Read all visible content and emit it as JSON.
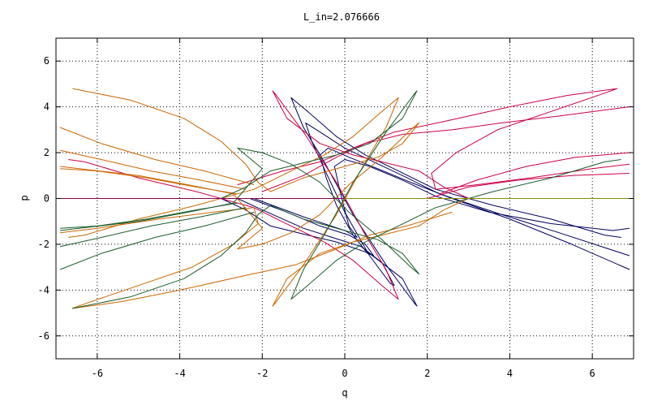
{
  "chart_data": {
    "type": "line",
    "title": "L_in=2.076666",
    "xlabel": "q",
    "ylabel": "p",
    "xlim": [
      -7,
      7
    ],
    "ylim": [
      -7,
      7
    ],
    "x_ticks": [
      -6,
      -4,
      -2,
      0,
      2,
      4,
      6
    ],
    "y_ticks": [
      -6,
      -4,
      -2,
      0,
      2,
      4,
      6
    ],
    "grid": true,
    "legend": "none",
    "series_colors": [
      "#000060",
      "#cc0044",
      "#cc6600",
      "#1a5c2a",
      "#8b8b00",
      "#880055"
    ],
    "series": [
      {
        "color": "#000060",
        "values": [
          [
            -3,
            0
          ],
          [
            -2.4,
            -0.5
          ],
          [
            -1.8,
            -1.2
          ],
          [
            -0.9,
            -1.6
          ],
          [
            -0.2,
            -1.9
          ],
          [
            0.6,
            -2.4
          ],
          [
            1.4,
            -3.5
          ],
          [
            1.75,
            -4.7
          ],
          [
            1.7,
            -4.6
          ],
          [
            1.0,
            -2.9
          ],
          [
            0.2,
            -0.7
          ],
          [
            -0.5,
            1.6
          ],
          [
            -1.0,
            3.1
          ],
          [
            -1.3,
            4.4
          ],
          [
            -0.9,
            3.8
          ],
          [
            -0.2,
            2.7
          ],
          [
            0.5,
            1.9
          ],
          [
            1.3,
            1.2
          ],
          [
            2.2,
            0.4
          ],
          [
            3.6,
            -0.3
          ],
          [
            5.0,
            -0.9
          ],
          [
            6.3,
            -1.6
          ],
          [
            6.7,
            -1.7
          ]
        ]
      },
      {
        "color": "#000060",
        "values": [
          [
            -2.6,
            0
          ],
          [
            -2.0,
            -0.5
          ],
          [
            -1.0,
            -1.3
          ],
          [
            -0.3,
            -1.7
          ],
          [
            0.4,
            -2.1
          ],
          [
            0.9,
            -2.8
          ],
          [
            1.2,
            -3.8
          ],
          [
            1.1,
            -3.7
          ],
          [
            0.6,
            -2.5
          ],
          [
            0.0,
            -0.6
          ],
          [
            -0.5,
            1.3
          ],
          [
            -0.8,
            2.5
          ],
          [
            -0.95,
            3.3
          ],
          [
            -0.6,
            2.9
          ],
          [
            0.0,
            2.2
          ],
          [
            0.7,
            1.6
          ],
          [
            1.4,
            1.0
          ],
          [
            2.3,
            0.2
          ],
          [
            3.8,
            -0.7
          ],
          [
            5.2,
            -1.5
          ],
          [
            6.9,
            -2.5
          ]
        ]
      },
      {
        "color": "#000060",
        "values": [
          [
            -2.3,
            0
          ],
          [
            -1.4,
            -0.6
          ],
          [
            -0.6,
            -1.2
          ],
          [
            0.1,
            -1.6
          ],
          [
            0.5,
            -2.0
          ],
          [
            0.7,
            -2.5
          ],
          [
            0.55,
            -2.4
          ],
          [
            0.2,
            -1.6
          ],
          [
            -0.2,
            -0.3
          ],
          [
            -0.45,
            0.9
          ],
          [
            -0.6,
            1.9
          ],
          [
            -0.4,
            2.2
          ],
          [
            0.1,
            1.8
          ],
          [
            0.8,
            1.3
          ],
          [
            1.6,
            0.7
          ],
          [
            2.6,
            0.0
          ],
          [
            4.0,
            -0.9
          ],
          [
            5.5,
            -2.0
          ],
          [
            6.9,
            -3.1
          ]
        ]
      },
      {
        "color": "#000060",
        "values": [
          [
            -2.2,
            0.0
          ],
          [
            -1.0,
            -0.8
          ],
          [
            0.0,
            -1.4
          ],
          [
            0.3,
            -1.7
          ],
          [
            0.1,
            -1.2
          ],
          [
            -0.1,
            0.2
          ],
          [
            -0.25,
            1.4
          ],
          [
            0.0,
            1.7
          ],
          [
            0.6,
            1.4
          ],
          [
            1.4,
            0.8
          ],
          [
            2.2,
            0.1
          ],
          [
            3.5,
            -0.6
          ],
          [
            5.0,
            -1.1
          ],
          [
            6.5,
            -1.4
          ],
          [
            6.9,
            -1.3
          ]
        ]
      },
      {
        "color": "#cc0044",
        "values": [
          [
            3,
            0
          ],
          [
            2.4,
            0.5
          ],
          [
            1.8,
            1.2
          ],
          [
            0.9,
            1.6
          ],
          [
            0.2,
            1.9
          ],
          [
            -0.6,
            2.4
          ],
          [
            -1.4,
            3.5
          ],
          [
            -1.75,
            4.7
          ],
          [
            -1.7,
            4.6
          ],
          [
            -1.0,
            2.9
          ],
          [
            -0.2,
            0.7
          ],
          [
            0.5,
            -1.6
          ],
          [
            1.0,
            -3.1
          ],
          [
            1.3,
            -4.4
          ],
          [
            0.9,
            -3.8
          ],
          [
            0.2,
            -2.7
          ],
          [
            -0.5,
            -1.9
          ],
          [
            -1.3,
            -1.2
          ],
          [
            -2.2,
            -0.4
          ],
          [
            -3.6,
            0.3
          ],
          [
            -5.0,
            0.9
          ],
          [
            -6.3,
            1.6
          ],
          [
            -6.7,
            1.7
          ]
        ]
      },
      {
        "color": "#cc0044",
        "values": [
          [
            -2.6,
            0.6
          ],
          [
            -1.5,
            1.2
          ],
          [
            -0.6,
            1.6
          ],
          [
            0.2,
            2.2
          ],
          [
            1.2,
            2.9
          ],
          [
            2.5,
            3.4
          ],
          [
            4.0,
            4.0
          ],
          [
            5.4,
            4.5
          ],
          [
            6.6,
            4.8
          ],
          [
            6.3,
            4.6
          ],
          [
            5.0,
            3.8
          ],
          [
            3.7,
            3.0
          ],
          [
            2.7,
            2.0
          ],
          [
            2.1,
            1.1
          ],
          [
            2.2,
            0.4
          ],
          [
            3.2,
            0.6
          ],
          [
            4.5,
            0.9
          ],
          [
            6.0,
            1.3
          ],
          [
            6.9,
            1.5
          ]
        ]
      },
      {
        "color": "#cc0044",
        "values": [
          [
            -2.0,
            0.3
          ],
          [
            -1.0,
            1.0
          ],
          [
            -0.2,
            1.8
          ],
          [
            0.5,
            2.4
          ],
          [
            1.4,
            2.8
          ],
          [
            2.6,
            3.0
          ],
          [
            3.8,
            3.3
          ],
          [
            5.2,
            3.6
          ],
          [
            6.9,
            4.0
          ]
        ]
      },
      {
        "color": "#cc0044",
        "values": [
          [
            2.0,
            0.0
          ],
          [
            3.0,
            0.5
          ],
          [
            4.2,
            0.8
          ],
          [
            5.5,
            1.0
          ],
          [
            6.9,
            1.1
          ]
        ]
      },
      {
        "color": "#cc0044",
        "values": [
          [
            2.3,
            0.2
          ],
          [
            3.2,
            0.8
          ],
          [
            4.4,
            1.4
          ],
          [
            5.6,
            1.8
          ],
          [
            6.9,
            2.0
          ]
        ]
      },
      {
        "color": "#cc6600",
        "values": [
          [
            3,
            0
          ],
          [
            2.4,
            -0.5
          ],
          [
            1.8,
            -1.2
          ],
          [
            0.9,
            -1.6
          ],
          [
            0.2,
            -1.9
          ],
          [
            -0.6,
            -2.4
          ],
          [
            -1.4,
            -3.5
          ],
          [
            -1.75,
            -4.7
          ],
          [
            -1.7,
            -4.6
          ],
          [
            -1.0,
            -2.9
          ],
          [
            -0.2,
            -0.7
          ],
          [
            0.5,
            1.6
          ],
          [
            1.0,
            3.1
          ],
          [
            1.3,
            4.4
          ],
          [
            0.9,
            3.8
          ],
          [
            0.2,
            2.7
          ],
          [
            -0.5,
            1.9
          ],
          [
            -1.3,
            1.2
          ],
          [
            -2.2,
            0.4
          ],
          [
            -3.6,
            -0.3
          ],
          [
            -5.0,
            -0.9
          ],
          [
            -6.3,
            -1.6
          ],
          [
            -6.7,
            -1.7
          ]
        ]
      },
      {
        "color": "#cc6600",
        "values": [
          [
            2.6,
            -0.6
          ],
          [
            1.5,
            -1.2
          ],
          [
            0.6,
            -1.6
          ],
          [
            -0.2,
            -2.2
          ],
          [
            -1.2,
            -2.9
          ],
          [
            -2.5,
            -3.4
          ],
          [
            -4.0,
            -4.0
          ],
          [
            -5.4,
            -4.5
          ],
          [
            -6.6,
            -4.8
          ],
          [
            -6.3,
            -4.6
          ],
          [
            -5.0,
            -3.8
          ],
          [
            -3.7,
            -3.0
          ],
          [
            -2.7,
            -2.0
          ],
          [
            -2.1,
            -1.1
          ],
          [
            -2.2,
            -0.4
          ],
          [
            -3.2,
            -0.6
          ],
          [
            -4.5,
            -0.9
          ],
          [
            -6.0,
            -1.3
          ],
          [
            -6.9,
            -1.5
          ]
        ]
      },
      {
        "color": "#cc6600",
        "values": [
          [
            -6.6,
            4.8
          ],
          [
            -5.2,
            4.3
          ],
          [
            -3.9,
            3.5
          ],
          [
            -3.0,
            2.5
          ],
          [
            -2.4,
            1.5
          ],
          [
            -2.1,
            0.7
          ],
          [
            -1.8,
            0.3
          ],
          [
            -1.0,
            0.9
          ],
          [
            0.0,
            1.4
          ],
          [
            0.8,
            1.8
          ],
          [
            1.4,
            2.4
          ],
          [
            1.8,
            3.3
          ],
          [
            1.6,
            3.0
          ],
          [
            0.9,
            1.8
          ],
          [
            0.1,
            0.6
          ],
          [
            -0.6,
            -0.7
          ],
          [
            -1.3,
            -1.5
          ],
          [
            -2.0,
            -2.0
          ],
          [
            -2.6,
            -2.2
          ],
          [
            -2.0,
            -1.3
          ],
          [
            -2.7,
            0.2
          ],
          [
            -3.8,
            0.6
          ],
          [
            -5.0,
            1.0
          ],
          [
            -6.9,
            1.4
          ]
        ]
      },
      {
        "color": "#cc6600",
        "values": [
          [
            -2.6,
            0.2
          ],
          [
            -3.6,
            0.5
          ],
          [
            -4.8,
            0.9
          ],
          [
            -6.0,
            1.2
          ],
          [
            -6.9,
            1.3
          ]
        ]
      },
      {
        "color": "#cc6600",
        "values": [
          [
            -2.4,
            0.4
          ],
          [
            -3.5,
            0.8
          ],
          [
            -4.7,
            1.2
          ],
          [
            -5.9,
            1.7
          ],
          [
            -6.9,
            2.1
          ]
        ]
      },
      {
        "color": "#cc6600",
        "values": [
          [
            -2.2,
            0.6
          ],
          [
            -3.4,
            1.2
          ],
          [
            -4.6,
            1.7
          ],
          [
            -5.9,
            2.4
          ],
          [
            -6.9,
            3.1
          ]
        ]
      },
      {
        "color": "#1a5c2a",
        "values": [
          [
            -3,
            0
          ],
          [
            -2.4,
            0.5
          ],
          [
            -1.8,
            1.2
          ],
          [
            -0.9,
            1.6
          ],
          [
            -0.2,
            1.9
          ],
          [
            0.6,
            2.4
          ],
          [
            1.4,
            3.5
          ],
          [
            1.75,
            4.7
          ],
          [
            1.7,
            4.6
          ],
          [
            1.0,
            2.9
          ],
          [
            0.2,
            0.7
          ],
          [
            -0.5,
            -1.6
          ],
          [
            -1.0,
            -3.1
          ],
          [
            -1.3,
            -4.4
          ],
          [
            -0.9,
            -3.8
          ],
          [
            -0.2,
            -2.7
          ],
          [
            0.5,
            -1.9
          ],
          [
            1.3,
            -1.2
          ],
          [
            2.2,
            -0.4
          ],
          [
            3.6,
            0.3
          ],
          [
            5.0,
            0.9
          ],
          [
            6.3,
            1.6
          ],
          [
            6.7,
            1.7
          ]
        ]
      },
      {
        "color": "#1a5c2a",
        "values": [
          [
            -6.6,
            -4.8
          ],
          [
            -5.2,
            -4.3
          ],
          [
            -3.9,
            -3.5
          ],
          [
            -3.0,
            -2.5
          ],
          [
            -2.4,
            -1.5
          ],
          [
            -2.1,
            -0.7
          ],
          [
            -1.8,
            -0.3
          ],
          [
            -1.0,
            -0.9
          ],
          [
            0.0,
            -1.4
          ],
          [
            0.8,
            -1.8
          ],
          [
            1.4,
            -2.4
          ],
          [
            1.8,
            -3.3
          ],
          [
            1.6,
            -3.0
          ],
          [
            0.9,
            -1.8
          ],
          [
            0.1,
            -0.6
          ],
          [
            -0.6,
            0.7
          ],
          [
            -1.3,
            1.5
          ],
          [
            -2.0,
            2.0
          ],
          [
            -2.6,
            2.2
          ],
          [
            -2.0,
            1.3
          ],
          [
            -2.7,
            -0.2
          ],
          [
            -3.8,
            -0.6
          ],
          [
            -5.0,
            -1.0
          ],
          [
            -6.9,
            -1.4
          ]
        ]
      },
      {
        "color": "#1a5c2a",
        "values": [
          [
            -2.6,
            -0.2
          ],
          [
            -3.6,
            -0.5
          ],
          [
            -4.8,
            -0.9
          ],
          [
            -6.0,
            -1.2
          ],
          [
            -6.9,
            -1.3
          ]
        ]
      },
      {
        "color": "#1a5c2a",
        "values": [
          [
            -2.4,
            -0.4
          ],
          [
            -3.5,
            -0.8
          ],
          [
            -4.7,
            -1.2
          ],
          [
            -5.9,
            -1.7
          ],
          [
            -6.9,
            -2.1
          ]
        ]
      },
      {
        "color": "#1a5c2a",
        "values": [
          [
            -2.2,
            -0.6
          ],
          [
            -3.4,
            -1.2
          ],
          [
            -4.6,
            -1.7
          ],
          [
            -5.9,
            -2.4
          ],
          [
            -6.9,
            -3.1
          ]
        ]
      },
      {
        "color": "#8b8b00",
        "values": [
          [
            0,
            0
          ],
          [
            6.9,
            0
          ]
        ]
      },
      {
        "color": "#880055",
        "values": [
          [
            -6.9,
            0
          ],
          [
            0,
            0
          ]
        ]
      }
    ]
  }
}
